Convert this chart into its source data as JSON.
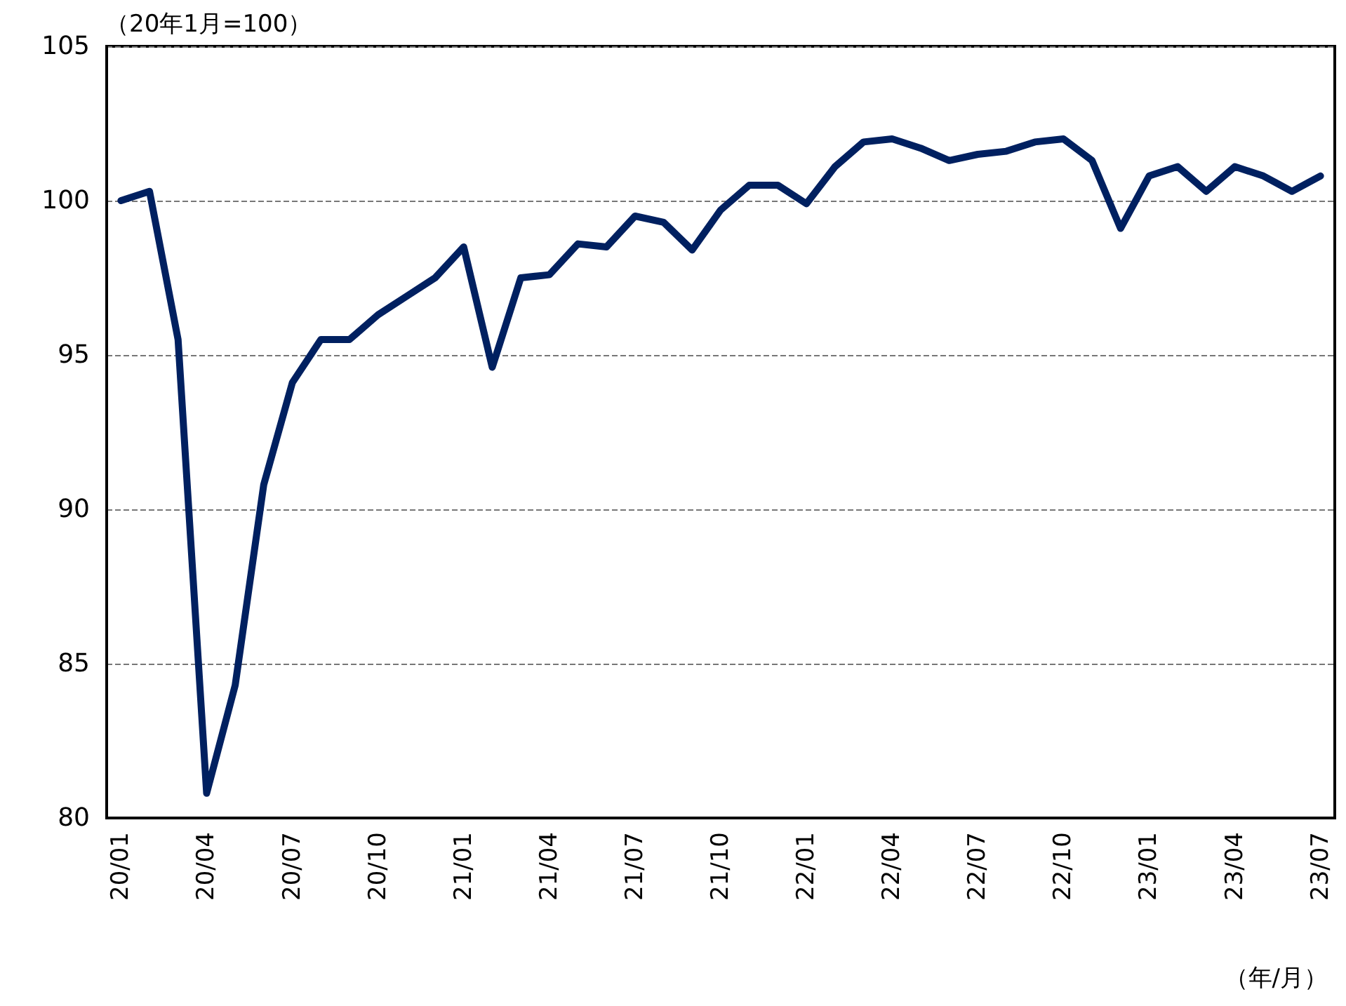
{
  "chart_data": {
    "type": "line",
    "ylabel": "（20年1月=100）",
    "xlabel": "（年/月）",
    "categories": [
      "20/01",
      null,
      null,
      "20/04",
      null,
      null,
      "20/07",
      null,
      null,
      "20/10",
      null,
      null,
      "21/01",
      null,
      null,
      "21/04",
      null,
      null,
      "21/07",
      null,
      null,
      "21/10",
      null,
      null,
      "22/01",
      null,
      null,
      "22/04",
      null,
      null,
      "22/07",
      null,
      null,
      "22/10",
      null,
      null,
      "23/01",
      null,
      null,
      "23/04",
      null,
      null,
      "23/07"
    ],
    "series": [
      {
        "color": "#002060",
        "values": [
          100.0,
          100.3,
          95.5,
          80.8,
          84.3,
          90.8,
          94.1,
          95.5,
          95.5,
          96.3,
          96.9,
          97.5,
          98.5,
          94.6,
          97.5,
          97.6,
          98.6,
          98.5,
          99.5,
          99.3,
          98.4,
          99.7,
          100.5,
          100.5,
          99.9,
          101.1,
          101.9,
          102.0,
          101.7,
          101.3,
          101.5,
          101.6,
          101.9,
          102.0,
          101.3,
          99.1,
          100.8,
          101.1,
          100.3,
          101.1,
          100.8,
          100.3,
          100.8
        ]
      }
    ],
    "ylim": [
      80,
      105
    ],
    "yticks": [
      80,
      85,
      90,
      95,
      100,
      105
    ],
    "grid": "y",
    "marker": "none",
    "line_style": "solid"
  }
}
